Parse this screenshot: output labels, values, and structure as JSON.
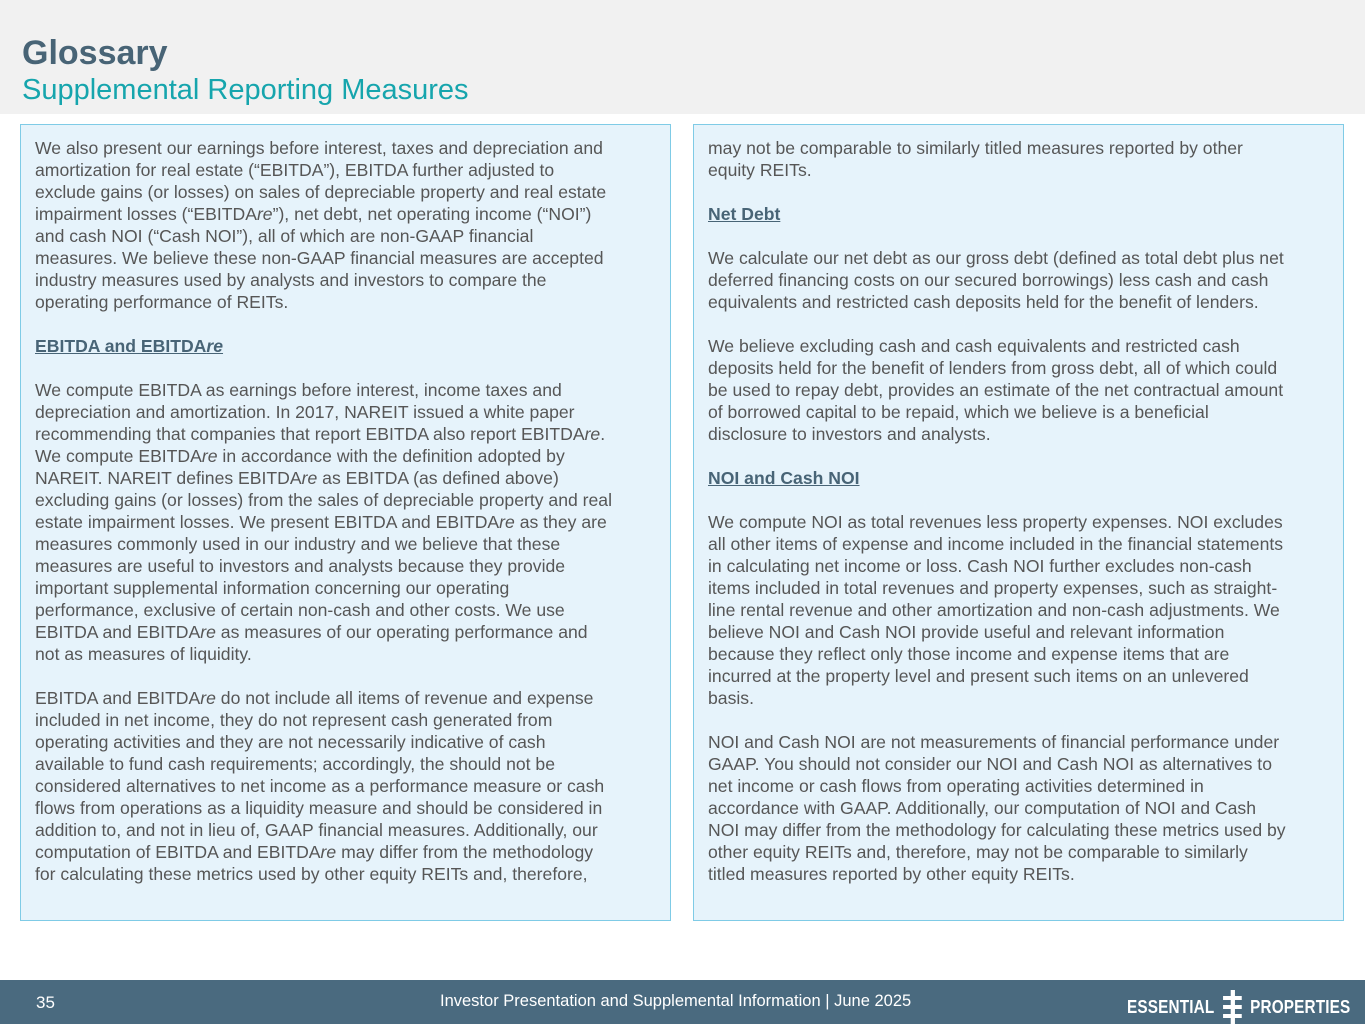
{
  "header": {
    "title": "Glossary",
    "subtitle": "Supplemental Reporting Measures"
  },
  "left_panel": [
    [
      "We also present our earnings before interest, taxes and depreciation and",
      "amortization for real estate (“EBITDA”), EBITDA further adjusted to",
      "exclude gains (or losses) on sales of depreciable property and real estate",
      "impairment losses (“EBITDAre”), net debt, net operating income (“NOI”)",
      "and cash NOI (“Cash NOI”), all of which are non-GAAP financial",
      "measures. We believe these non-GAAP financial measures are accepted",
      "industry measures used by analysts and investors to compare the",
      "operating performance of REITs."
    ],
    {
      "heading": "EBITDA and EBITDAre"
    },
    [
      "We compute EBITDA as earnings before interest, income taxes and",
      "depreciation and amortization. In 2017, NAREIT issued a white paper",
      "recommending that companies that report EBITDA also report EBITDAre.",
      "We compute EBITDAre in accordance with the definition adopted by",
      "NAREIT. NAREIT defines EBITDAre as EBITDA (as defined above)",
      "excluding gains (or losses) from the sales of depreciable property and real",
      "estate impairment losses. We present EBITDA and EBITDAre as they are",
      "measures commonly used in our industry and we believe that these",
      "measures are useful to investors and analysts because they provide",
      "important supplemental information concerning our operating",
      "performance, exclusive of certain non-cash and other costs. We use",
      "EBITDA and EBITDAre as measures of our operating performance and",
      "not as measures of liquidity."
    ],
    [
      "EBITDA and EBITDAre do not include all items of revenue and expense",
      "included in net income, they do not represent cash generated from",
      "operating activities and they are not necessarily indicative of cash",
      "available to fund cash requirements; accordingly, the should not be",
      "considered alternatives to net income as a performance measure or cash",
      "flows from operations as a liquidity measure and should be considered in",
      "addition to, and not in lieu of, GAAP financial measures. Additionally, our",
      "computation of EBITDA and EBITDAre may differ from the methodology",
      "for calculating these metrics used by other equity REITs and, therefore,"
    ]
  ],
  "right_panel": [
    [
      "may not be comparable to similarly titled measures reported by other",
      "equity REITs."
    ],
    {
      "heading": "Net Debt"
    },
    [
      "We calculate our net debt as our gross debt (defined as total debt plus net",
      "deferred financing costs on our secured borrowings) less cash and cash",
      "equivalents and restricted cash deposits held for the benefit of lenders."
    ],
    [
      "We believe excluding cash and cash equivalents and restricted cash",
      "deposits held for the benefit of lenders from gross debt, all of which could",
      "be used to repay debt, provides an estimate of the net contractual amount",
      "of borrowed capital to be repaid, which we believe is a beneficial",
      "disclosure to investors and analysts."
    ],
    {
      "heading": "NOI and Cash NOI"
    },
    [
      "We compute NOI as total revenues less property expenses. NOI excludes",
      "all other items of expense and income included in the financial statements",
      "in calculating net income or loss. Cash NOI further excludes non-cash",
      "items included in total revenues and property expenses, such as straight-",
      "line rental revenue and other amortization and non-cash adjustments. We",
      "believe NOI and Cash NOI provide useful and relevant information",
      "because they reflect only those income and expense items that are",
      "incurred at the property level and present such items on an unlevered",
      "basis."
    ],
    [
      "NOI and Cash NOI are not measurements of financial performance under",
      "GAAP. You should not consider our NOI and Cash NOI as alternatives to",
      "net income or cash flows from operating activities determined in",
      "accordance with GAAP. Additionally, our computation of NOI and Cash",
      "NOI may differ from the methodology for calculating these metrics used by",
      "other equity REITs and, therefore, may not be comparable to similarly",
      "titled measures reported by other equity REITs."
    ]
  ],
  "footer": {
    "page_number": "35",
    "text": "Investor Presentation and Supplemental Information | June 2025",
    "logo_left": "ESSENTIAL",
    "logo_right": "PROPERTIES"
  },
  "colors": {
    "title": "#486476",
    "subtitle": "#16a5ad",
    "panel_bg": "#e6f3fb",
    "panel_border": "#7fcbe6",
    "footer_bg": "#4a6a7f"
  }
}
